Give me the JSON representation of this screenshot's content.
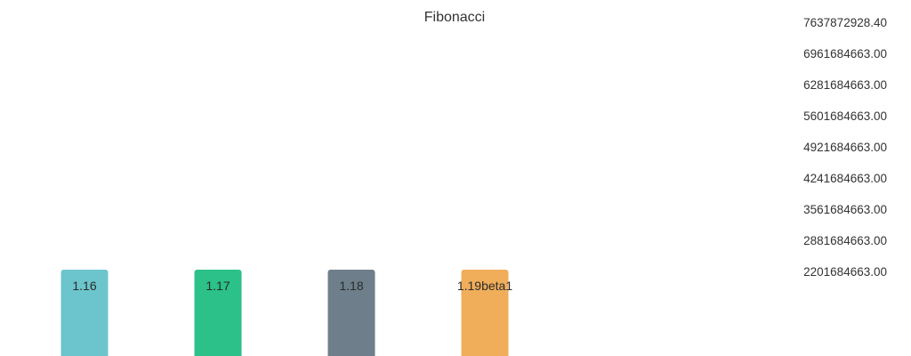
{
  "chart_data": {
    "type": "bar",
    "title": "Fibonacci",
    "xlabel": "",
    "ylabel": "",
    "categories": [
      "1.16",
      "1.17",
      "1.18",
      "1.19beta1"
    ],
    "values": [
      2201684663.0,
      2201684663.0,
      2201684663.0,
      2201684663.0
    ],
    "colors": [
      "#6cc5cc",
      "#2bc189",
      "#6e7f8b",
      "#f0ad5a"
    ],
    "ylim": [
      2201684663.0,
      7637872928.4
    ],
    "yticks": [
      "7637872928.40",
      "6961684663.00",
      "6281684663.00",
      "5601684663.00",
      "4921684663.00",
      "4241684663.00",
      "3561684663.00",
      "2881684663.00",
      "2201684663.00"
    ],
    "y_axis_position": "right",
    "grid": false,
    "legend": "none"
  }
}
